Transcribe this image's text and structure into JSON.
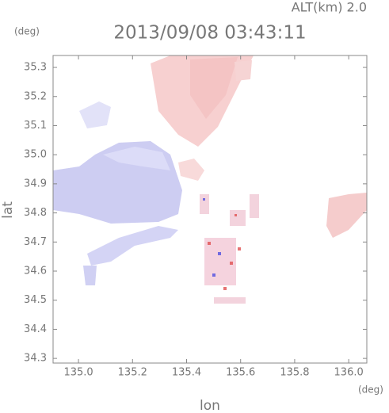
{
  "chart_data": {
    "type": "radar-map",
    "title": "2013/09/08 03:43:11",
    "subtitle": "ALT(km) 2.0",
    "x_label": "lon",
    "y_label": "lat",
    "x_unit": "(deg)",
    "y_unit": "(deg)",
    "xlim": [
      134.906,
      136.067
    ],
    "ylim": [
      34.284,
      35.341
    ],
    "xticks": [
      {
        "value": 135.0,
        "label": "135.0"
      },
      135.2,
      135.4,
      135.6,
      135.8,
      {
        "value": 136.0,
        "label": "136.0"
      }
    ],
    "yticks": [
      34.3,
      34.4,
      34.5,
      34.6,
      34.7,
      34.8,
      34.9,
      {
        "value": 35.0,
        "label": "35.0"
      },
      35.1,
      35.2,
      35.3
    ]
  }
}
